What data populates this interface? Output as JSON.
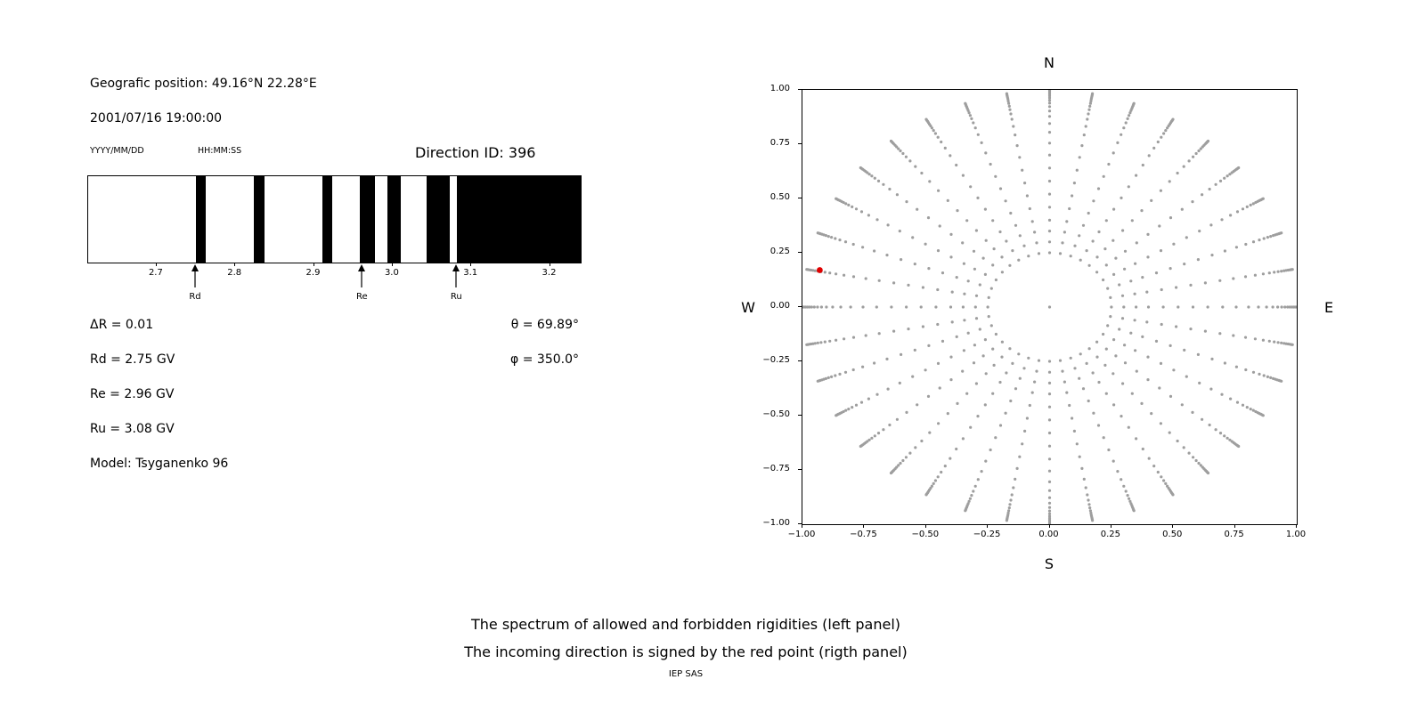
{
  "info": {
    "geo_position": "Geografic position: 49.16°N 22.28°E",
    "datetime": "2001/07/16 19:00:00",
    "date_format_label": "YYYY/MM/DD",
    "time_format_label": "HH:MM:SS",
    "direction_id": "Direction ID: 396"
  },
  "parameters": {
    "delta_r": "ΔR = 0.01",
    "rd": "Rd = 2.75 GV",
    "re": "Re = 2.96 GV",
    "ru": "Ru = 3.08 GV",
    "model": "Model: Tsyganenko 96",
    "theta": "θ = 69.89°",
    "phi": "φ = 350.0°"
  },
  "caption": {
    "line1": "The spectrum of allowed and forbidden rigidities (left panel)",
    "line2": "The incoming direction is signed by the red point (rigth panel)",
    "credit": "IEP SAS"
  },
  "chart_data": [
    {
      "type": "bar",
      "name": "rigidity-spectrum-barcode",
      "title": "",
      "xlabel": "",
      "ylabel": "",
      "xlim": [
        2.613,
        3.239
      ],
      "xticks": [
        {
          "v": 2.7,
          "label": "2.7"
        },
        {
          "v": 2.8,
          "label": "2.8"
        },
        {
          "v": 2.9,
          "label": "2.9"
        },
        {
          "v": 3.0,
          "label": "3.0"
        },
        {
          "v": 3.1,
          "label": "3.1"
        },
        {
          "v": 3.2,
          "label": "3.2"
        }
      ],
      "band_color": "#000000",
      "forbidden_bands": [
        [
          2.75,
          2.762
        ],
        [
          2.824,
          2.837
        ],
        [
          2.911,
          2.923
        ],
        [
          2.958,
          2.978
        ],
        [
          2.993,
          3.01
        ],
        [
          3.043,
          3.073
        ],
        [
          3.082,
          3.239
        ]
      ],
      "markers": [
        {
          "label": "Rd",
          "x": 2.75
        },
        {
          "label": "Re",
          "x": 2.962
        },
        {
          "label": "Ru",
          "x": 3.082
        }
      ]
    },
    {
      "type": "scatter",
      "name": "incoming-direction-map",
      "title": "",
      "xlim": [
        -1.0,
        1.0
      ],
      "ylim": [
        -1.0,
        1.0
      ],
      "xticks": [
        {
          "v": -1.0,
          "label": "−1.00"
        },
        {
          "v": -0.75,
          "label": "−0.75"
        },
        {
          "v": -0.5,
          "label": "−0.50"
        },
        {
          "v": -0.25,
          "label": "−0.25"
        },
        {
          "v": 0.0,
          "label": "0.00"
        },
        {
          "v": 0.25,
          "label": "0.25"
        },
        {
          "v": 0.5,
          "label": "0.50"
        },
        {
          "v": 0.75,
          "label": "0.75"
        },
        {
          "v": 1.0,
          "label": "1.00"
        }
      ],
      "yticks": [
        {
          "v": 1.0,
          "label": "1.00"
        },
        {
          "v": 0.75,
          "label": "0.75"
        },
        {
          "v": 0.5,
          "label": "0.50"
        },
        {
          "v": 0.25,
          "label": "0.25"
        },
        {
          "v": 0.0,
          "label": "0.00"
        },
        {
          "v": -0.25,
          "label": "−0.25"
        },
        {
          "v": -0.5,
          "label": "−0.50"
        },
        {
          "v": -0.75,
          "label": "−0.75"
        },
        {
          "v": -1.0,
          "label": "−1.00"
        }
      ],
      "compass": {
        "top": "N",
        "bottom": "S",
        "left": "W",
        "right": "E"
      },
      "spokes": {
        "count": 36,
        "start_deg": 0,
        "step_deg": 10,
        "radii": [
          0.25,
          0.3,
          0.35,
          0.4,
          0.46,
          0.52,
          0.58,
          0.64,
          0.7,
          0.755,
          0.805,
          0.845,
          0.878,
          0.903,
          0.923,
          0.939,
          0.952,
          0.963,
          0.972,
          0.98,
          0.987,
          0.993,
          0.998
        ]
      },
      "center_point": true,
      "point_color": "#9e9e9e",
      "red_point": {
        "x": -0.93,
        "y": 0.17,
        "color": "#e00000"
      }
    }
  ]
}
